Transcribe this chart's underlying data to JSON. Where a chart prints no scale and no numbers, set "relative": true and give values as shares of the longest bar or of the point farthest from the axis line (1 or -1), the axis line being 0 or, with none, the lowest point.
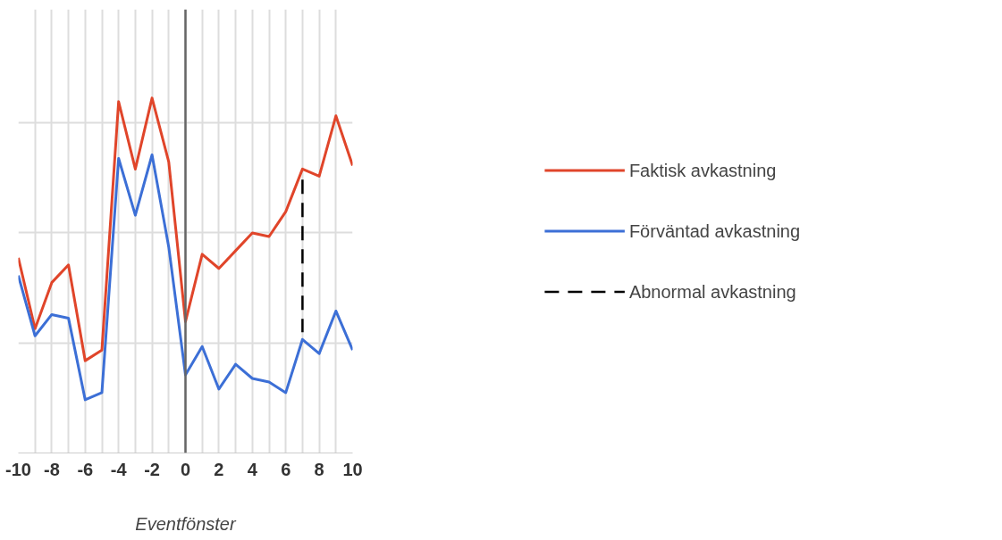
{
  "chart_data": {
    "type": "line",
    "xlabel": "Eventfönster",
    "relative": true,
    "x": [
      -10,
      -9,
      -8,
      -7,
      -6,
      -5,
      -4,
      -3,
      -2,
      -1,
      0,
      1,
      2,
      3,
      4,
      5,
      6,
      7,
      8,
      9,
      10
    ],
    "xlim": [
      -10,
      10
    ],
    "xticks": [
      -10,
      {
        "value": -9,
        "label": null
      },
      -8,
      {
        "value": -7,
        "label": null
      },
      -6,
      {
        "value": -5,
        "label": null
      },
      -4,
      {
        "value": -3,
        "label": null
      },
      -2,
      {
        "value": -1,
        "label": null
      },
      0,
      {
        "value": 1,
        "label": null
      },
      2,
      {
        "value": 3,
        "label": null
      },
      4,
      {
        "value": 5,
        "label": null
      },
      6,
      {
        "value": 7,
        "label": null
      },
      8,
      {
        "value": 9,
        "label": null
      },
      10
    ],
    "series": [
      {
        "name": "Faktisk avkastning",
        "color": "#e0452a",
        "values": [
          0.55,
          0.35,
          0.48,
          0.53,
          0.26,
          0.29,
          0.99,
          0.8,
          1.0,
          0.82,
          0.37,
          0.56,
          0.52,
          0.57,
          0.62,
          0.61,
          0.68,
          0.8,
          0.78,
          0.95,
          0.81
        ]
      },
      {
        "name": "Förväntad avkastning",
        "color": "#3c6fd6",
        "values": [
          0.5,
          0.33,
          0.39,
          0.38,
          0.15,
          0.17,
          0.83,
          0.67,
          0.84,
          0.58,
          0.22,
          0.3,
          0.18,
          0.25,
          0.21,
          0.2,
          0.17,
          0.32,
          0.28,
          0.4,
          0.29
        ]
      },
      {
        "name": "Abnormal avkastning",
        "color": "#000000",
        "line_style": "dashed",
        "x": [
          7,
          7
        ],
        "values": [
          0.77,
          0.34
        ]
      }
    ],
    "ref_lines": [
      {
        "axis": "x",
        "value": 0,
        "color": "#666666"
      }
    ],
    "grid": true,
    "legend": "right",
    "line_style": "solid",
    "marker": "none"
  }
}
